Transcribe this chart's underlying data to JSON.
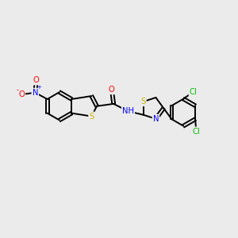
{
  "bg_color": "#ebebeb",
  "bond_color": "#000000",
  "atom_colors": {
    "S": "#c8b400",
    "N": "#0000ff",
    "O": "#ff0000",
    "Cl": "#00bb00",
    "C": "#000000",
    "H": "#000000"
  },
  "figsize": [
    3.0,
    3.0
  ],
  "dpi": 100,
  "lw": 1.4,
  "fs": 7.2
}
